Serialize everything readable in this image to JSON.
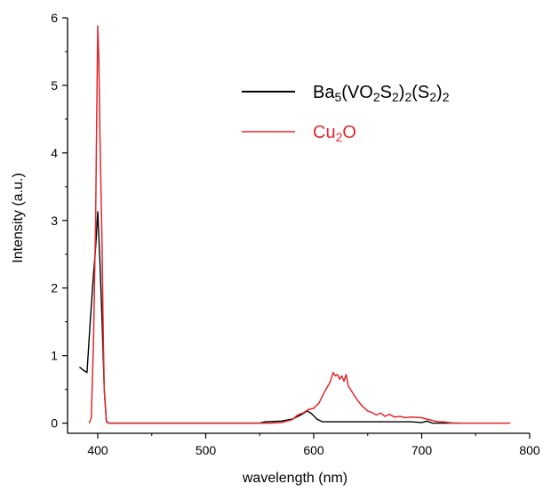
{
  "chart_data": {
    "type": "line",
    "title": "",
    "xlabel": "wavelength (nm)",
    "ylabel": "Intensity (a.u.)",
    "xlim": [
      372,
      800
    ],
    "ylim": [
      -0.15,
      6
    ],
    "x_ticks": [
      400,
      500,
      600,
      700,
      800
    ],
    "y_ticks": [
      0,
      1,
      2,
      3,
      4,
      5,
      6
    ],
    "grid": false,
    "legend_position": "top-right",
    "series": [
      {
        "name": "Ba5(VO2S2)2(S2)2",
        "name_parts": [
          {
            "t": "Ba",
            "sub": false
          },
          {
            "t": "5",
            "sub": true
          },
          {
            "t": "(VO",
            "sub": false
          },
          {
            "t": "2",
            "sub": true
          },
          {
            "t": "S",
            "sub": false
          },
          {
            "t": "2",
            "sub": true
          },
          {
            "t": ")",
            "sub": false
          },
          {
            "t": "2",
            "sub": true
          },
          {
            "t": "(S",
            "sub": false
          },
          {
            "t": "2",
            "sub": true
          },
          {
            "t": ")",
            "sub": false
          },
          {
            "t": "2",
            "sub": true
          }
        ],
        "color": "#000000",
        "points": [
          [
            383,
            0.83
          ],
          [
            387,
            0.78
          ],
          [
            390,
            0.75
          ],
          [
            393,
            1.5
          ],
          [
            396,
            2.2
          ],
          [
            398,
            2.6
          ],
          [
            400,
            3.13
          ],
          [
            402,
            2.4
          ],
          [
            404,
            1.5
          ],
          [
            406,
            0.5
          ],
          [
            408,
            0.03
          ],
          [
            410,
            0.0
          ],
          [
            450,
            0.0
          ],
          [
            500,
            0.0
          ],
          [
            550,
            0.0
          ],
          [
            555,
            0.02
          ],
          [
            570,
            0.03
          ],
          [
            580,
            0.06
          ],
          [
            588,
            0.12
          ],
          [
            594,
            0.18
          ],
          [
            598,
            0.14
          ],
          [
            603,
            0.06
          ],
          [
            608,
            0.02
          ],
          [
            630,
            0.02
          ],
          [
            660,
            0.02
          ],
          [
            690,
            0.02
          ],
          [
            700,
            0.01
          ],
          [
            705,
            0.03
          ],
          [
            710,
            0.0
          ],
          [
            720,
            0.0
          ],
          [
            735,
            0.0
          ]
        ]
      },
      {
        "name": "Cu2O",
        "name_parts": [
          {
            "t": "Cu",
            "sub": false
          },
          {
            "t": "2",
            "sub": true
          },
          {
            "t": "O",
            "sub": false
          }
        ],
        "color": "#e0282e",
        "points": [
          [
            392,
            0.0
          ],
          [
            394,
            0.08
          ],
          [
            396,
            1.2
          ],
          [
            398,
            3.0
          ],
          [
            399,
            4.5
          ],
          [
            400,
            5.88
          ],
          [
            401,
            5.4
          ],
          [
            402,
            4.3
          ],
          [
            404,
            2.6
          ],
          [
            405,
            1.4
          ],
          [
            406,
            0.5
          ],
          [
            408,
            0.02
          ],
          [
            410,
            0.0
          ],
          [
            450,
            0.0
          ],
          [
            500,
            0.0
          ],
          [
            560,
            0.0
          ],
          [
            570,
            0.01
          ],
          [
            580,
            0.05
          ],
          [
            585,
            0.12
          ],
          [
            590,
            0.15
          ],
          [
            595,
            0.2
          ],
          [
            600,
            0.22
          ],
          [
            605,
            0.3
          ],
          [
            608,
            0.4
          ],
          [
            612,
            0.52
          ],
          [
            615,
            0.6
          ],
          [
            618,
            0.75
          ],
          [
            620,
            0.7
          ],
          [
            622,
            0.72
          ],
          [
            624,
            0.65
          ],
          [
            626,
            0.7
          ],
          [
            628,
            0.62
          ],
          [
            630,
            0.72
          ],
          [
            632,
            0.55
          ],
          [
            636,
            0.45
          ],
          [
            640,
            0.35
          ],
          [
            645,
            0.25
          ],
          [
            650,
            0.18
          ],
          [
            655,
            0.15
          ],
          [
            658,
            0.12
          ],
          [
            662,
            0.15
          ],
          [
            666,
            0.1
          ],
          [
            670,
            0.13
          ],
          [
            675,
            0.09
          ],
          [
            680,
            0.1
          ],
          [
            685,
            0.08
          ],
          [
            690,
            0.09
          ],
          [
            700,
            0.08
          ],
          [
            705,
            0.06
          ],
          [
            710,
            0.04
          ],
          [
            716,
            0.02
          ],
          [
            720,
            0.02
          ],
          [
            730,
            0.0
          ],
          [
            760,
            0.0
          ],
          [
            782,
            0.0
          ]
        ]
      }
    ]
  }
}
